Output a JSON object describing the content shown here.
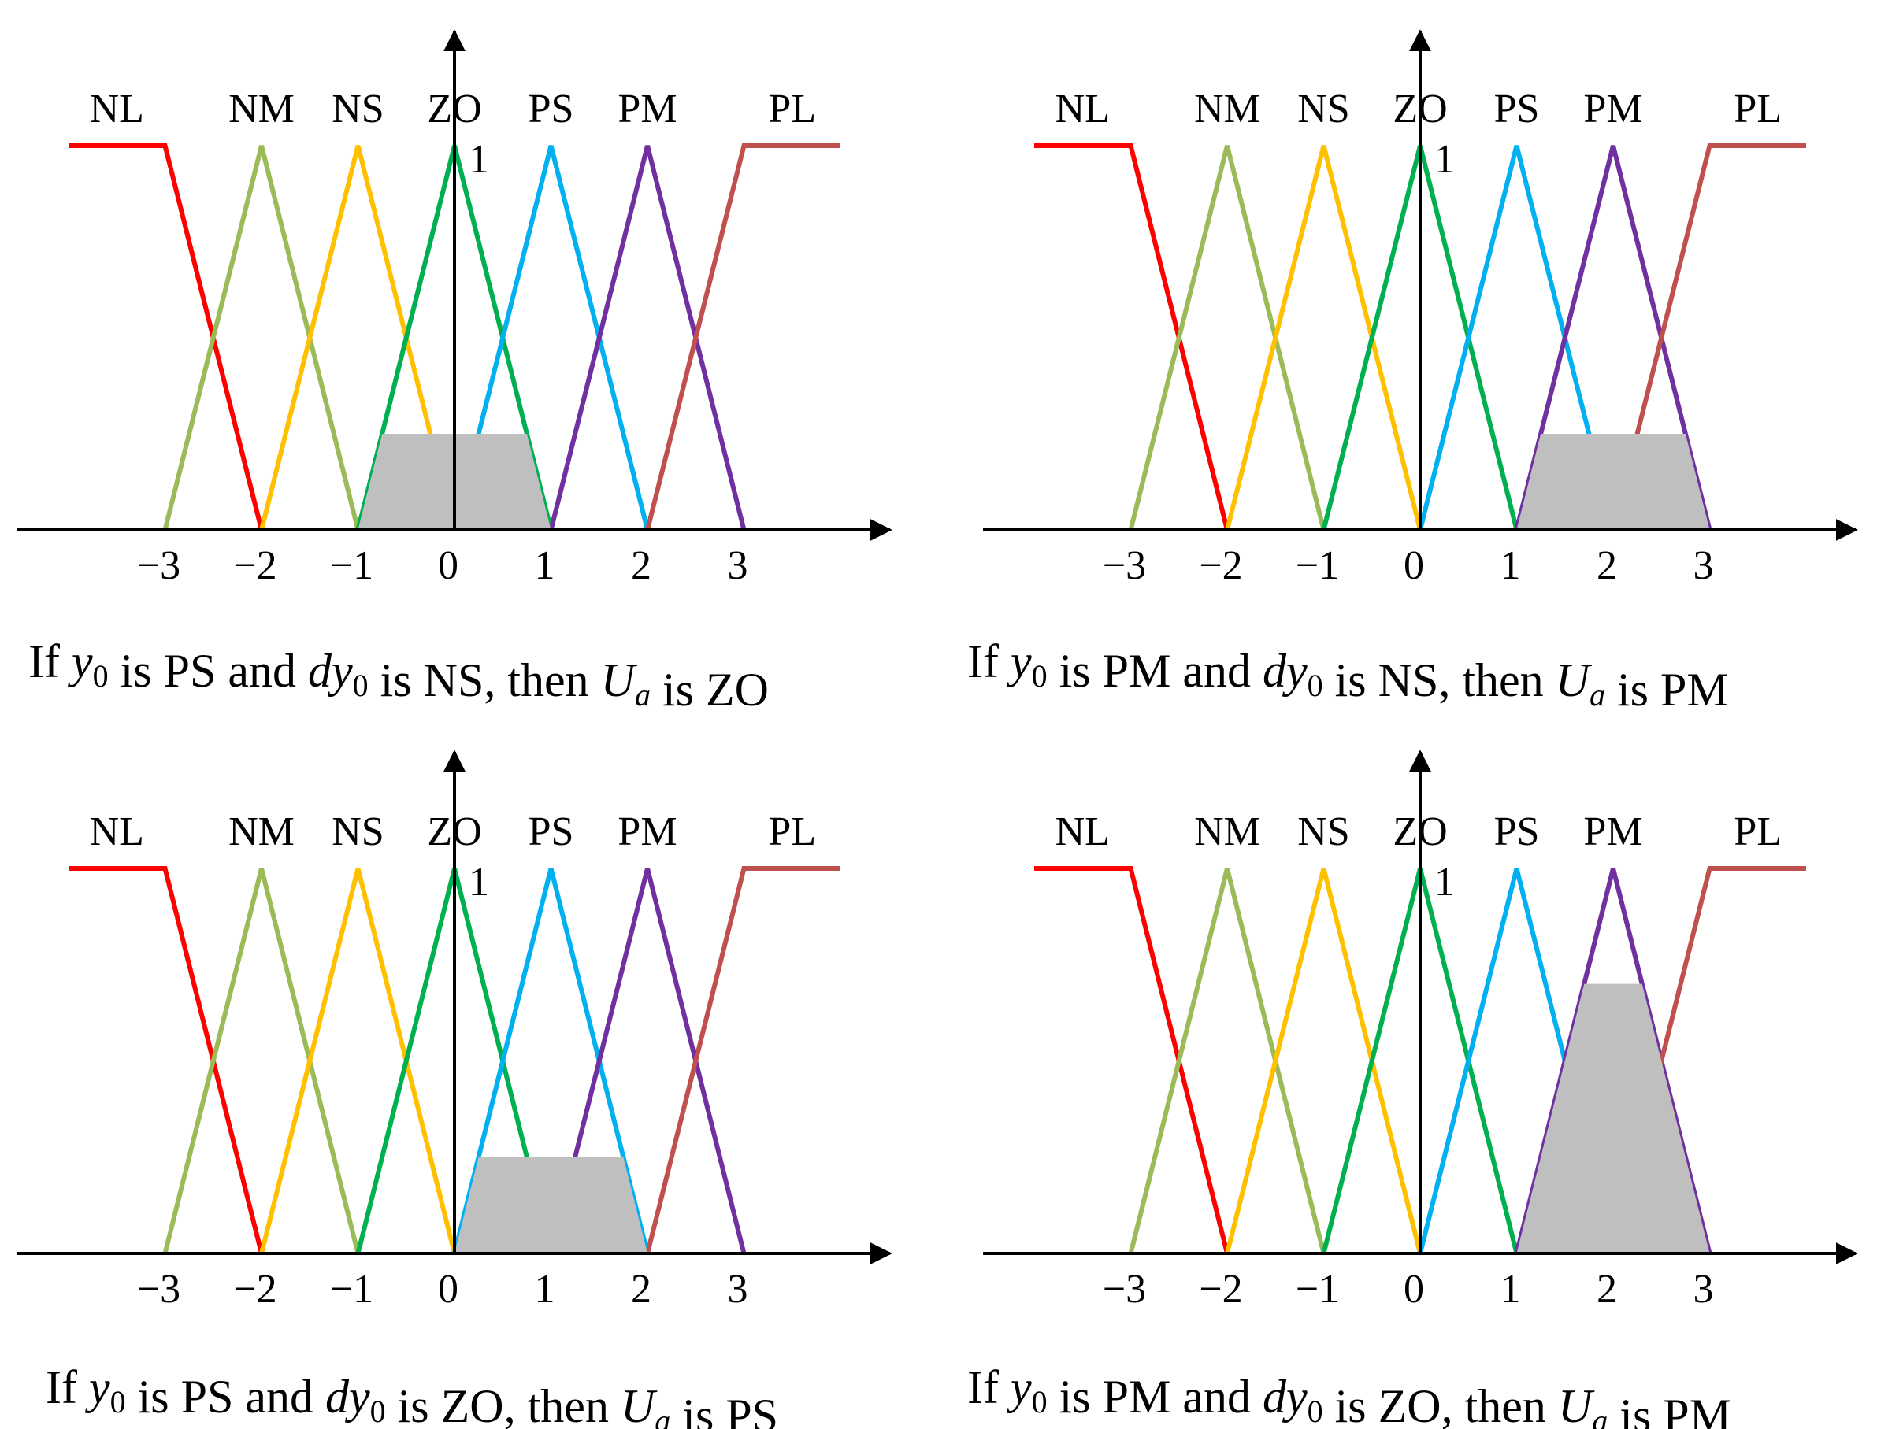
{
  "universe": {
    "ticks": [
      -3,
      -2,
      -1,
      0,
      1,
      2,
      3
    ],
    "tick_labels": [
      "−3",
      "−2",
      "−1",
      "0",
      "1",
      "2",
      "3"
    ],
    "peak_label": "1"
  },
  "fuzzy_sets": [
    {
      "name": "NL",
      "color": "#ff0000",
      "points": [
        [
          -4,
          1
        ],
        [
          -3,
          1
        ],
        [
          -2,
          0
        ]
      ]
    },
    {
      "name": "NM",
      "color": "#9bbb59",
      "points": [
        [
          -3,
          0
        ],
        [
          -2,
          1
        ],
        [
          -1,
          0
        ]
      ]
    },
    {
      "name": "NS",
      "color": "#ffc000",
      "points": [
        [
          -2,
          0
        ],
        [
          -1,
          1
        ],
        [
          0,
          0
        ]
      ]
    },
    {
      "name": "ZO",
      "color": "#00b050",
      "points": [
        [
          -1,
          0
        ],
        [
          0,
          1
        ],
        [
          1,
          0
        ]
      ]
    },
    {
      "name": "PS",
      "color": "#00b0f0",
      "points": [
        [
          0,
          0
        ],
        [
          1,
          1
        ],
        [
          2,
          0
        ]
      ]
    },
    {
      "name": "PM",
      "color": "#7030a0",
      "points": [
        [
          1,
          0
        ],
        [
          2,
          1
        ],
        [
          3,
          0
        ]
      ]
    },
    {
      "name": "PL",
      "color": "#c0504d",
      "points": [
        [
          2,
          0
        ],
        [
          3,
          1
        ],
        [
          4,
          1
        ]
      ]
    }
  ],
  "panels": [
    {
      "id": "top-left",
      "caption": {
        "if": "If",
        "y": "y",
        "sub": "0",
        "p1": "is PS and",
        "dy": "dy",
        "p2": "is NS, then",
        "u": "U",
        "usub": "a",
        "p3": "is ZO"
      },
      "output_set": "ZO",
      "clip_level": 0.25
    },
    {
      "id": "top-right",
      "caption": {
        "if": "If",
        "y": "y",
        "sub": "0",
        "p1": "is PM and",
        "dy": "dy",
        "p2": "is NS, then",
        "u": "U",
        "usub": "a",
        "p3": "is PM"
      },
      "output_set": "PM",
      "clip_level": 0.25
    },
    {
      "id": "bottom-left",
      "caption": {
        "if": "If",
        "y": "y",
        "sub": "0",
        "p1": "is PS and",
        "dy": "dy",
        "p2": "is ZO, then",
        "u": "U",
        "usub": "a",
        "p3": "is PS"
      },
      "output_set": "PS",
      "clip_level": 0.25
    },
    {
      "id": "bottom-right",
      "caption": {
        "if": "If",
        "y": "y",
        "sub": "0",
        "p1": "is PM and",
        "dy": "dy",
        "p2": "is ZO, then",
        "u": "U",
        "usub": "a",
        "p3": "is PM"
      },
      "output_set": "PM",
      "clip_level": 0.7
    }
  ]
}
